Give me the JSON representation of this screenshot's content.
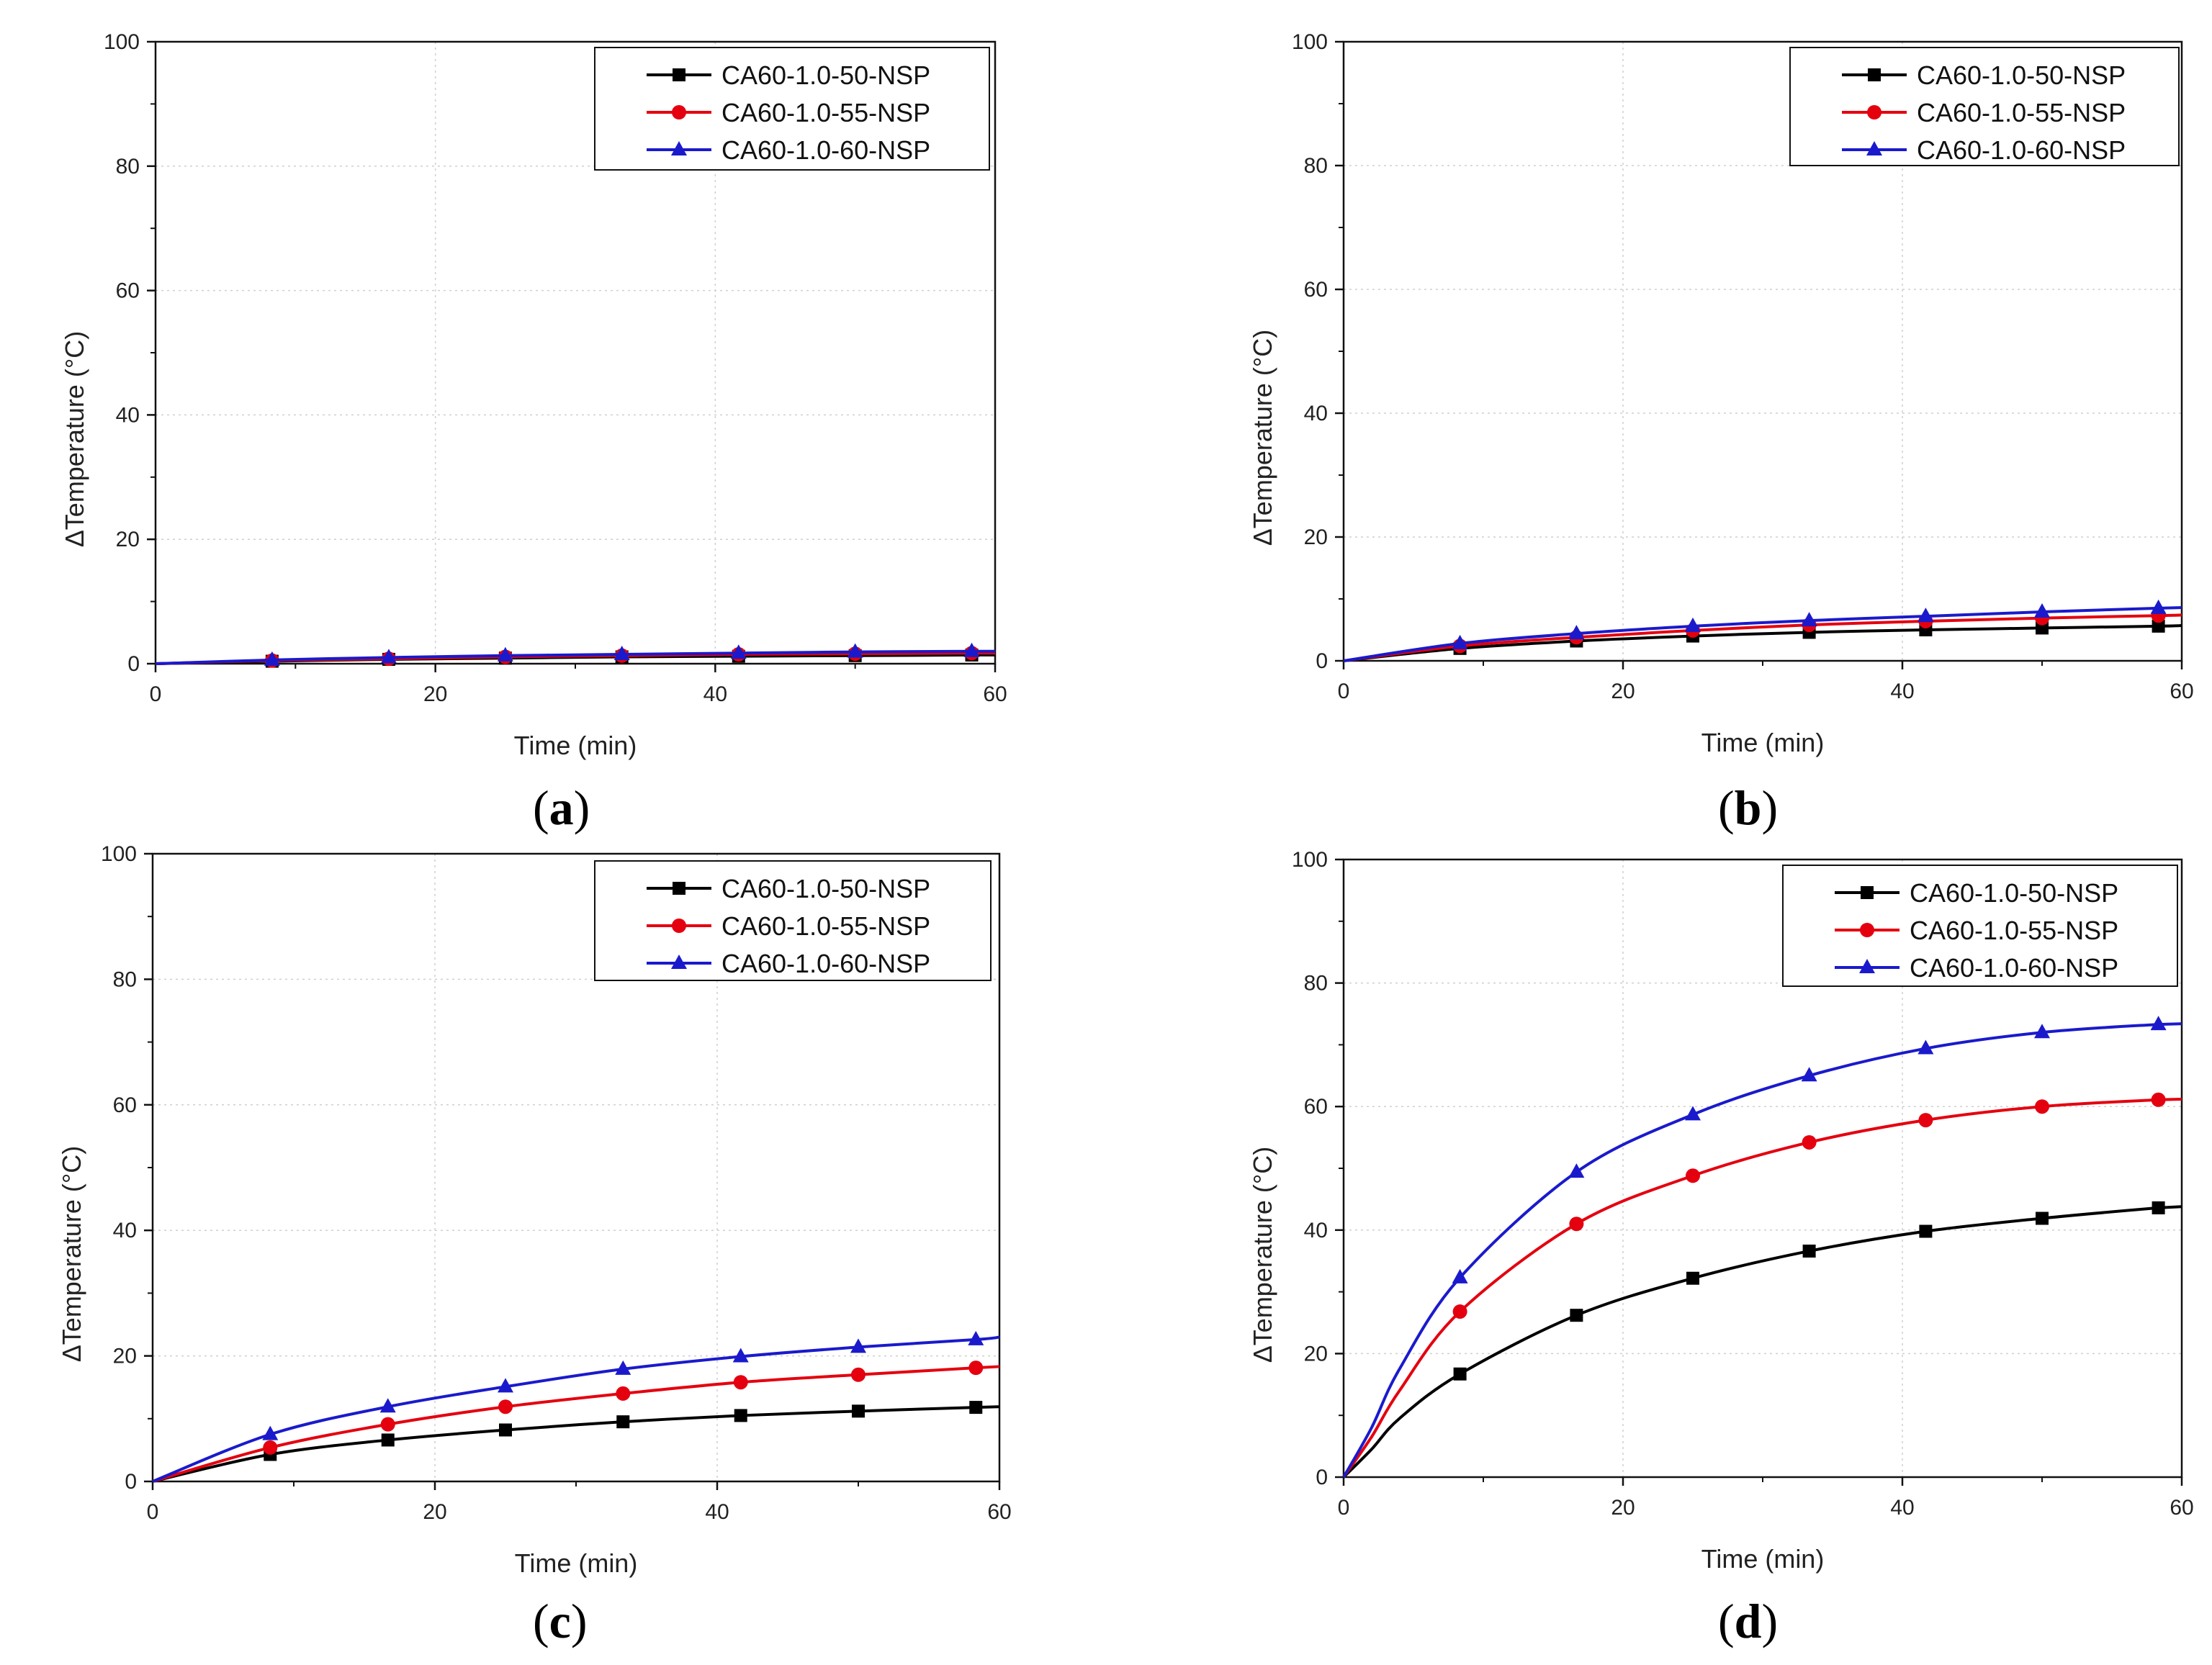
{
  "figure": {
    "title": ""
  },
  "chart_data": [
    {
      "type": "line",
      "panel_label": "a",
      "xlabel": "Time (min)",
      "ylabel": "ΔTemperature (°C)",
      "xlim": [
        0,
        60
      ],
      "ylim": [
        0,
        100
      ],
      "xticks": [
        "0",
        "20",
        "40",
        "60"
      ],
      "yticks": [
        "0",
        "20",
        "40",
        "60",
        "80",
        "100"
      ],
      "grid": true,
      "legend_position": "top-right",
      "series": [
        {
          "name": "CA60-1.0-50-NSP",
          "color": "#000000",
          "marker": "square",
          "x": [
            0,
            8.33,
            16.67,
            25,
            33.33,
            41.67,
            50,
            58.33,
            60
          ],
          "y": [
            0,
            0.4,
            0.7,
            0.9,
            1.1,
            1.2,
            1.3,
            1.4,
            1.4
          ]
        },
        {
          "name": "CA60-1.0-55-NSP",
          "color": "#e4000f",
          "marker": "circle",
          "x": [
            0,
            8.33,
            16.67,
            25,
            33.33,
            41.67,
            50,
            58.33,
            60
          ],
          "y": [
            0,
            0.5,
            0.8,
            1.1,
            1.3,
            1.5,
            1.6,
            1.7,
            1.7
          ]
        },
        {
          "name": "CA60-1.0-60-NSP",
          "color": "#1a1acc",
          "marker": "triangle",
          "x": [
            0,
            8.33,
            16.67,
            25,
            33.33,
            41.67,
            50,
            58.33,
            60
          ],
          "y": [
            0,
            0.6,
            1.0,
            1.3,
            1.5,
            1.7,
            1.9,
            2.0,
            2.0
          ]
        }
      ]
    },
    {
      "type": "line",
      "panel_label": "b",
      "xlabel": "Time (min)",
      "ylabel": "ΔTemperature (°C)",
      "xlim": [
        0,
        60
      ],
      "ylim": [
        0,
        100
      ],
      "xticks": [
        "0",
        "20",
        "40",
        "60"
      ],
      "yticks": [
        "0",
        "20",
        "40",
        "60",
        "80",
        "100"
      ],
      "grid": true,
      "legend_position": "top-right",
      "series": [
        {
          "name": "CA60-1.0-50-NSP",
          "color": "#000000",
          "marker": "square",
          "x": [
            0,
            8.33,
            16.67,
            25,
            33.33,
            41.67,
            50,
            58.33,
            60
          ],
          "y": [
            0,
            2.0,
            3.2,
            4.0,
            4.6,
            5.0,
            5.3,
            5.6,
            5.7
          ]
        },
        {
          "name": "CA60-1.0-55-NSP",
          "color": "#e4000f",
          "marker": "circle",
          "x": [
            0,
            8.33,
            16.67,
            25,
            33.33,
            41.67,
            50,
            58.33,
            60
          ],
          "y": [
            0,
            2.4,
            3.8,
            4.9,
            5.8,
            6.4,
            6.9,
            7.3,
            7.4
          ]
        },
        {
          "name": "CA60-1.0-60-NSP",
          "color": "#1a1acc",
          "marker": "triangle",
          "x": [
            0,
            8.33,
            16.67,
            25,
            33.33,
            41.67,
            50,
            58.33,
            60
          ],
          "y": [
            0,
            2.8,
            4.4,
            5.6,
            6.5,
            7.2,
            7.9,
            8.5,
            8.6
          ]
        }
      ]
    },
    {
      "type": "line",
      "panel_label": "c",
      "xlabel": "Time (min)",
      "ylabel": "ΔTemperature (°C)",
      "xlim": [
        0,
        60
      ],
      "ylim": [
        0,
        100
      ],
      "xticks": [
        "0",
        "20",
        "40",
        "60"
      ],
      "yticks": [
        "0",
        "20",
        "40",
        "60",
        "80",
        "100"
      ],
      "grid": true,
      "legend_position": "top-right",
      "series": [
        {
          "name": "CA60-1.0-50-NSP",
          "color": "#000000",
          "marker": "square",
          "x": [
            0,
            8.33,
            16.67,
            25,
            33.33,
            41.67,
            50,
            58.33,
            60
          ],
          "y": [
            0,
            4.3,
            6.6,
            8.2,
            9.5,
            10.5,
            11.2,
            11.8,
            11.9
          ]
        },
        {
          "name": "CA60-1.0-55-NSP",
          "color": "#e4000f",
          "marker": "circle",
          "x": [
            0,
            8.33,
            16.67,
            25,
            33.33,
            41.67,
            50,
            58.33,
            60
          ],
          "y": [
            0,
            5.4,
            9.1,
            11.9,
            14.0,
            15.8,
            17.0,
            18.1,
            18.3
          ]
        },
        {
          "name": "CA60-1.0-60-NSP",
          "color": "#1a1acc",
          "marker": "triangle",
          "x": [
            0,
            8.33,
            16.67,
            25,
            33.33,
            41.67,
            50,
            58.33,
            60
          ],
          "y": [
            0,
            7.5,
            11.9,
            15.1,
            17.9,
            19.9,
            21.4,
            22.6,
            23.0
          ]
        }
      ]
    },
    {
      "type": "line",
      "panel_label": "d",
      "xlabel": "Time (min)",
      "ylabel": "ΔTemperature (°C)",
      "xlim": [
        0,
        60
      ],
      "ylim": [
        0,
        100
      ],
      "xticks": [
        "0",
        "20",
        "40",
        "60"
      ],
      "yticks": [
        "0",
        "20",
        "40",
        "60",
        "80",
        "100"
      ],
      "grid": true,
      "legend_position": "top-right",
      "series": [
        {
          "name": "CA60-1.0-50-NSP",
          "color": "#000000",
          "marker": "square",
          "x": [
            0,
            2,
            4,
            8.33,
            16.67,
            25,
            33.33,
            41.67,
            50,
            58.33,
            60
          ],
          "y": [
            0,
            4.5,
            9.5,
            16.7,
            26.2,
            32.2,
            36.6,
            39.8,
            41.9,
            43.6,
            43.8
          ]
        },
        {
          "name": "CA60-1.0-55-NSP",
          "color": "#e4000f",
          "marker": "circle",
          "x": [
            0,
            2,
            4,
            8.33,
            16.67,
            25,
            33.33,
            41.67,
            50,
            58.33,
            60
          ],
          "y": [
            0,
            6.5,
            14.0,
            26.8,
            41.0,
            48.8,
            54.2,
            57.8,
            60.0,
            61.1,
            61.2
          ]
        },
        {
          "name": "CA60-1.0-60-NSP",
          "color": "#1a1acc",
          "marker": "triangle",
          "x": [
            0,
            2,
            4,
            8.33,
            16.67,
            25,
            33.33,
            41.67,
            50,
            58.33,
            60
          ],
          "y": [
            0,
            8.0,
            17.5,
            32.3,
            49.4,
            58.7,
            65.0,
            69.4,
            72.0,
            73.3,
            73.4
          ]
        }
      ]
    }
  ]
}
